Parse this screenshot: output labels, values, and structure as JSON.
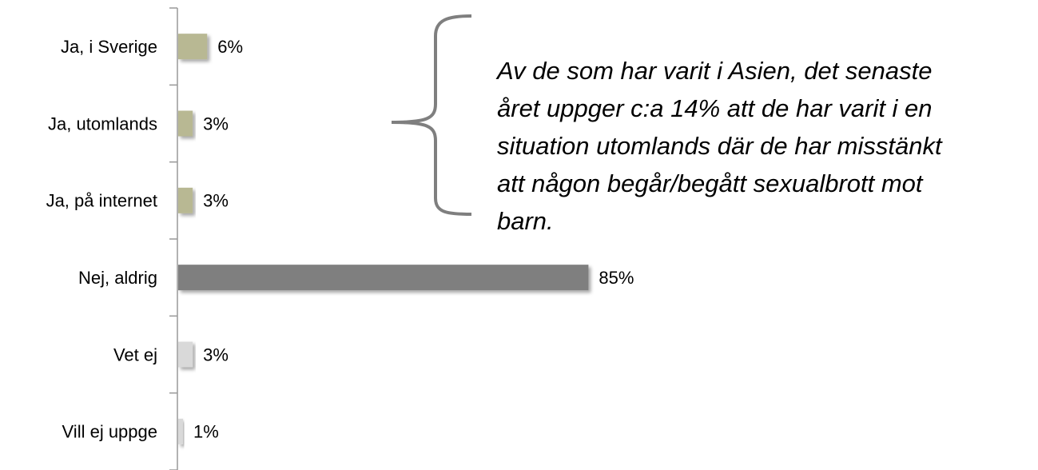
{
  "chart_data": {
    "type": "bar",
    "orientation": "horizontal",
    "categories": [
      "Ja, i Sverige",
      "Ja, utomlands",
      "Ja, på internet",
      "Nej, aldrig",
      "Vet ej",
      "Vill ej uppge"
    ],
    "values": [
      6,
      3,
      3,
      85,
      3,
      1
    ],
    "value_labels": [
      "6%",
      "3%",
      "3%",
      "85%",
      "3%",
      "1%"
    ],
    "colors": [
      "#b8b893",
      "#b8b893",
      "#b8b893",
      "#7f7f7f",
      "#d9d9d9",
      "#d9d9d9"
    ],
    "annotation": [
      "Av de som har varit i Asien, det senaste",
      "året uppger c:a 14%  att de har varit i en",
      "situation utomlands där de har misstänkt",
      "att någon begår/begått sexualbrott mot",
      "barn."
    ]
  }
}
